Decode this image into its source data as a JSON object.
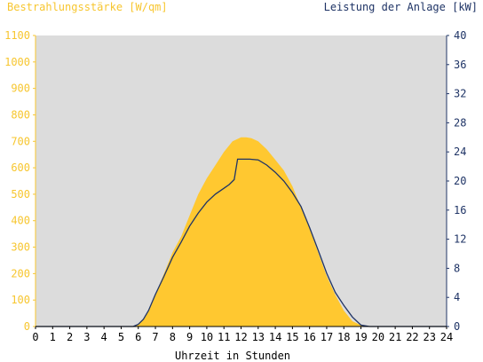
{
  "chart_data": {
    "type": "area",
    "title_left": "Bestrahlungsstärke [W/qm]",
    "title_right": "Leistung der Anlage [kW]",
    "xlabel": "Uhrzeit in Stunden",
    "xlim": [
      0,
      24
    ],
    "x_ticks": [
      "0",
      "1",
      "2",
      "3",
      "4",
      "5",
      "6",
      "7",
      "8",
      "9",
      "10",
      "11",
      "12",
      "13",
      "14",
      "15",
      "16",
      "17",
      "18",
      "19",
      "20",
      "21",
      "22",
      "23",
      "24"
    ],
    "y_left": {
      "lim": [
        0,
        1100
      ],
      "ticks": [
        "0",
        "100",
        "200",
        "300",
        "400",
        "500",
        "600",
        "700",
        "800",
        "900",
        "1000",
        "1100"
      ]
    },
    "y_right": {
      "lim": [
        0,
        40
      ],
      "ticks": [
        "0",
        "4",
        "8",
        "12",
        "16",
        "20",
        "24",
        "28",
        "32",
        "36",
        "40"
      ]
    },
    "series": [
      {
        "name": "Bestrahlungsstärke [W/qm]",
        "axis": "left",
        "color": "#ffc830",
        "x": [
          0,
          5.7,
          6.0,
          6.3,
          6.6,
          7.0,
          7.5,
          8.0,
          8.5,
          9.0,
          9.5,
          10.0,
          10.5,
          11.0,
          11.5,
          12.0,
          12.3,
          12.6,
          13.0,
          13.5,
          14.0,
          14.5,
          15.0,
          15.5,
          16.0,
          16.5,
          17.0,
          17.5,
          18.0,
          18.5,
          19.0,
          19.5,
          24
        ],
        "y": [
          0,
          0,
          10,
          30,
          60,
          120,
          200,
          280,
          340,
          420,
          500,
          560,
          610,
          660,
          700,
          715,
          715,
          712,
          700,
          670,
          630,
          590,
          530,
          450,
          370,
          280,
          190,
          120,
          60,
          20,
          5,
          0,
          0
        ]
      },
      {
        "name": "Leistung der Anlage [kW]",
        "axis": "right",
        "color": "#1f3466",
        "x": [
          0,
          5.7,
          6.0,
          6.3,
          6.6,
          7.0,
          7.5,
          8.0,
          8.5,
          9.0,
          9.5,
          10.0,
          10.5,
          11.0,
          11.3,
          11.6,
          11.8,
          12.0,
          12.5,
          13.0,
          13.5,
          14.0,
          14.5,
          15.0,
          15.5,
          16.0,
          16.5,
          17.0,
          17.5,
          18.0,
          18.5,
          19.0,
          19.5,
          24
        ],
        "y": [
          0,
          0,
          0.3,
          1.0,
          2.2,
          4.4,
          6.9,
          9.5,
          11.6,
          13.8,
          15.6,
          17.1,
          18.2,
          19.0,
          19.5,
          20.2,
          23.0,
          23.0,
          23.0,
          22.9,
          22.2,
          21.2,
          20.0,
          18.4,
          16.5,
          13.6,
          10.5,
          7.3,
          4.7,
          2.9,
          1.3,
          0.2,
          0,
          0
        ]
      }
    ],
    "colors": {
      "plot_background": "#dcdcdc",
      "left_axis": "#f7c62f",
      "right_axis": "#1f3466",
      "area": "#ffc830",
      "line": "#1f3466"
    },
    "grid": false
  }
}
